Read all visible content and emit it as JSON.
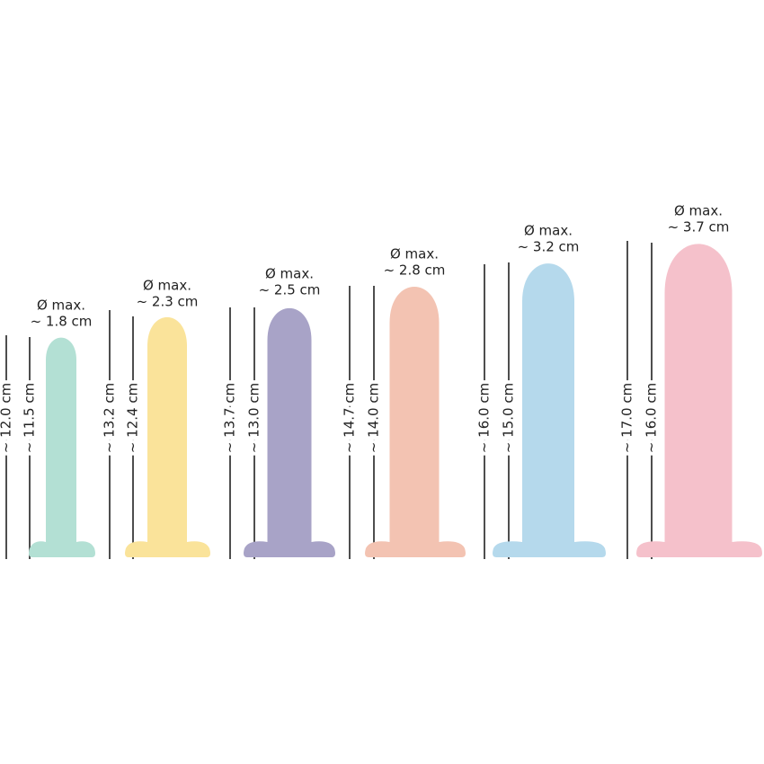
{
  "items": [
    {
      "diameter_label": "Ø max.",
      "diameter": "~ 1.8 cm",
      "total_length": "~ 12.0 cm",
      "insertable_length": "~ 11.5 cm",
      "color": "#b3e0d4"
    },
    {
      "diameter_label": "Ø max.",
      "diameter": "~ 2.3 cm",
      "total_length": "~ 13.2 cm",
      "insertable_length": "~ 12.4 cm",
      "color": "#fae39a"
    },
    {
      "diameter_label": "Ø max.",
      "diameter": "~ 2.5 cm",
      "total_length": "~ 13.7 cm",
      "insertable_length": "~ 13.0 cm",
      "color": "#a8a3c7"
    },
    {
      "diameter_label": "Ø max.",
      "diameter": "~ 2.8 cm",
      "total_length": "~ 14.7 cm",
      "insertable_length": "~ 14.0 cm",
      "color": "#f3c3b2"
    },
    {
      "diameter_label": "Ø max.",
      "diameter": "~ 3.2 cm",
      "total_length": "~ 16.0 cm",
      "insertable_length": "~ 15.0 cm",
      "color": "#b5d9ec"
    },
    {
      "diameter_label": "Ø max.",
      "diameter": "~ 3.7 cm",
      "total_length": "~ 17.0 cm",
      "insertable_length": "~ 16.0 cm",
      "color": "#f5c1cb"
    }
  ]
}
